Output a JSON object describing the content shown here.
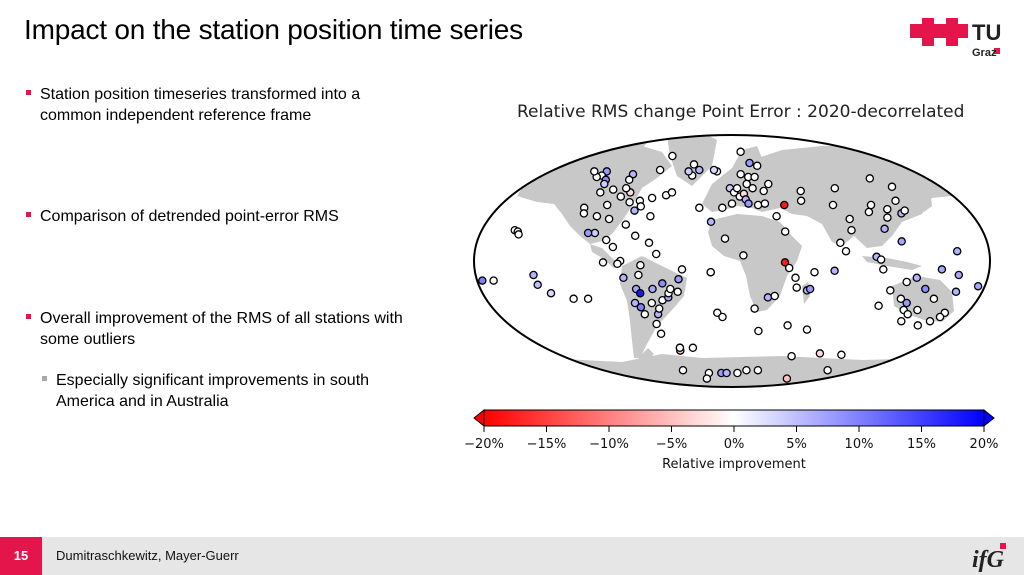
{
  "slide": {
    "title": "Impact on the station position time series",
    "page_number": "15",
    "authors": "Dumitraschkewitz, Mayer-Guerr"
  },
  "logos": {
    "tu": {
      "line1": "TU",
      "line2": "Graz",
      "accent": "#e4154b"
    },
    "ifg": {
      "text": "ifG",
      "accent": "#e4154b"
    }
  },
  "bullets": [
    {
      "text": "Station position timeseries transformed into a common independent reference frame"
    },
    {
      "text": "Comparison of detrended point-error RMS"
    },
    {
      "text": "Overall improvement of the RMS of all stations with some outliers"
    }
  ],
  "sub_bullets": [
    {
      "text": "Especially significant improvements in south America and in Australia"
    }
  ],
  "figure": {
    "title": "Relative RMS change Point Error : 2020-decorrelated",
    "colorbar": {
      "ticks": [
        "−20%",
        "−15%",
        "−10%",
        "−5%",
        "0%",
        "5%",
        "10%",
        "15%",
        "20%"
      ],
      "label": "Relative improvement",
      "range": [
        -20,
        20
      ],
      "colors": {
        "negative": "#ff0000",
        "zero": "#ffffff",
        "positive": "#0000ff"
      }
    },
    "map_colors": {
      "ocean": "#ffffff",
      "land": "#c8c8c8",
      "outline": "#000000"
    }
  },
  "chart_data": {
    "type": "scatter",
    "title": "Relative RMS change Point Error : 2020-decorrelated",
    "xlabel": "",
    "ylabel": "",
    "colorbar_label": "Relative improvement",
    "color_range": [
      -20,
      20
    ],
    "stations": [
      {
        "lon": -170,
        "lat": -14,
        "v": 0
      },
      {
        "lon": -160,
        "lat": 22,
        "v": 0
      },
      {
        "lon": -157,
        "lat": 21,
        "v": 0
      },
      {
        "lon": -150,
        "lat": 64,
        "v": 8
      },
      {
        "lon": -147,
        "lat": 61,
        "v": 0
      },
      {
        "lon": -140,
        "lat": -10,
        "v": 6
      },
      {
        "lon": -140,
        "lat": -17,
        "v": 5
      },
      {
        "lon": -134,
        "lat": -23,
        "v": 3
      },
      {
        "lon": -135,
        "lat": 58,
        "v": 9
      },
      {
        "lon": -130,
        "lat": 55,
        "v": 4
      },
      {
        "lon": -123,
        "lat": 49,
        "v": 0
      },
      {
        "lon": -122,
        "lat": 38,
        "v": 0
      },
      {
        "lon": -118,
        "lat": 34,
        "v": 0
      },
      {
        "lon": -114,
        "lat": 51,
        "v": 0
      },
      {
        "lon": -114,
        "lat": 62,
        "v": 6
      },
      {
        "lon": -110,
        "lat": 58,
        "v": 0
      },
      {
        "lon": -105,
        "lat": 40,
        "v": 0
      },
      {
        "lon": -106,
        "lat": 32,
        "v": 0
      },
      {
        "lon": -100,
        "lat": 20,
        "v": 4
      },
      {
        "lon": -95,
        "lat": 30,
        "v": 0
      },
      {
        "lon": -94,
        "lat": 75,
        "v": 0
      },
      {
        "lon": -95,
        "lat": 49,
        "v": -3
      },
      {
        "lon": -90,
        "lat": 15,
        "v": 0
      },
      {
        "lon": -88,
        "lat": 42,
        "v": 0
      },
      {
        "lon": -84,
        "lat": 10,
        "v": 0
      },
      {
        "lon": -80,
        "lat": 26,
        "v": 0
      },
      {
        "lon": -79,
        "lat": 36,
        "v": 6
      },
      {
        "lon": -80,
        "lat": 43,
        "v": 0
      },
      {
        "lon": -78,
        "lat": 0,
        "v": 0
      },
      {
        "lon": -77,
        "lat": -12,
        "v": 6
      },
      {
        "lon": -76,
        "lat": 39,
        "v": 0
      },
      {
        "lon": -75,
        "lat": -30,
        "v": 6
      },
      {
        "lon": -72,
        "lat": -33,
        "v": 10
      },
      {
        "lon": -71,
        "lat": 45,
        "v": 0
      },
      {
        "lon": -72,
        "lat": -38,
        "v": 0
      },
      {
        "lon": -70,
        "lat": 18,
        "v": 0
      },
      {
        "lon": -70,
        "lat": -20,
        "v": 7
      },
      {
        "lon": -68,
        "lat": -23,
        "v": 18
      },
      {
        "lon": -69,
        "lat": -52,
        "v": 0
      },
      {
        "lon": -67,
        "lat": -45,
        "v": 0
      },
      {
        "lon": -66,
        "lat": -10,
        "v": 0
      },
      {
        "lon": -64,
        "lat": -3,
        "v": 0
      },
      {
        "lon": -62,
        "lat": -30,
        "v": 0
      },
      {
        "lon": -61,
        "lat": -38,
        "v": 6
      },
      {
        "lon": -60,
        "lat": -62,
        "v": 0
      },
      {
        "lon": -58,
        "lat": -34,
        "v": 0
      },
      {
        "lon": -58,
        "lat": -20,
        "v": 7
      },
      {
        "lon": -53,
        "lat": -28,
        "v": 0
      },
      {
        "lon": -53,
        "lat": 5,
        "v": 0
      },
      {
        "lon": -50,
        "lat": -16,
        "v": 9
      },
      {
        "lon": -48,
        "lat": -26,
        "v": 7
      },
      {
        "lon": -47,
        "lat": -23,
        "v": 0
      },
      {
        "lon": -45,
        "lat": -20,
        "v": 0
      },
      {
        "lon": -40,
        "lat": -22,
        "v": 0
      },
      {
        "lon": -38,
        "lat": -13,
        "v": 8
      },
      {
        "lon": -35,
        "lat": -6,
        "v": 0
      },
      {
        "lon": -45,
        "lat": 61,
        "v": 0
      },
      {
        "lon": -52,
        "lat": 64,
        "v": 4
      },
      {
        "lon": -51,
        "lat": 69,
        "v": 0
      },
      {
        "lon": -40,
        "lat": 65,
        "v": 6
      },
      {
        "lon": -18,
        "lat": 64,
        "v": 0
      },
      {
        "lon": -22,
        "lat": 65,
        "v": 3
      },
      {
        "lon": -16,
        "lat": 28,
        "v": 6
      },
      {
        "lon": -15,
        "lat": -8,
        "v": 6
      },
      {
        "lon": -12,
        "lat": -37,
        "v": 0
      },
      {
        "lon": -8,
        "lat": 38,
        "v": 0
      },
      {
        "lon": -2,
        "lat": 52,
        "v": 4
      },
      {
        "lon": 0,
        "lat": 41,
        "v": 0
      },
      {
        "lon": 2,
        "lat": 49,
        "v": 0
      },
      {
        "lon": 5,
        "lat": 52,
        "v": 0
      },
      {
        "lon": 7,
        "lat": 46,
        "v": 0
      },
      {
        "lon": 10,
        "lat": 62,
        "v": 0
      },
      {
        "lon": 11,
        "lat": 48,
        "v": -3
      },
      {
        "lon": 12,
        "lat": 44,
        "v": 6
      },
      {
        "lon": 14,
        "lat": 41,
        "v": 8
      },
      {
        "lon": 15,
        "lat": 55,
        "v": 0
      },
      {
        "lon": 15,
        "lat": 78,
        "v": 0
      },
      {
        "lon": 18,
        "lat": 60,
        "v": 0
      },
      {
        "lon": 18,
        "lat": -34,
        "v": 0
      },
      {
        "lon": 20,
        "lat": 52,
        "v": 0
      },
      {
        "lon": 22,
        "lat": 40,
        "v": 0
      },
      {
        "lon": 25,
        "lat": 60,
        "v": 0
      },
      {
        "lon": 24,
        "lat": 70,
        "v": 8
      },
      {
        "lon": 27,
        "lat": -26,
        "v": 6
      },
      {
        "lon": 28,
        "lat": 41,
        "v": 0
      },
      {
        "lon": 30,
        "lat": 50,
        "v": 0
      },
      {
        "lon": 33,
        "lat": 68,
        "v": 0
      },
      {
        "lon": 32,
        "lat": -25,
        "v": 0
      },
      {
        "lon": 35,
        "lat": 32,
        "v": 0
      },
      {
        "lon": 37,
        "lat": 55,
        "v": 0
      },
      {
        "lon": 37,
        "lat": -1,
        "v": -18
      },
      {
        "lon": 39,
        "lat": 21,
        "v": 0
      },
      {
        "lon": 44,
        "lat": 40,
        "v": -18
      },
      {
        "lon": 45,
        "lat": -12,
        "v": 0
      },
      {
        "lon": 40,
        "lat": -5,
        "v": 0
      },
      {
        "lon": 47,
        "lat": -19,
        "v": 0
      },
      {
        "lon": 55,
        "lat": -21,
        "v": 6
      },
      {
        "lon": 57,
        "lat": -20,
        "v": 8
      },
      {
        "lon": 50,
        "lat": -46,
        "v": 0
      },
      {
        "lon": 58,
        "lat": -8,
        "v": 0
      },
      {
        "lon": 60,
        "lat": 43,
        "v": 0
      },
      {
        "lon": 65,
        "lat": 50,
        "v": 0
      },
      {
        "lon": 70,
        "lat": -49,
        "v": 0
      },
      {
        "lon": 72,
        "lat": -7,
        "v": 6
      },
      {
        "lon": 77,
        "lat": 13,
        "v": 0
      },
      {
        "lon": 78,
        "lat": -68,
        "v": 0
      },
      {
        "lon": 80,
        "lat": 7,
        "v": 0
      },
      {
        "lon": 85,
        "lat": 40,
        "v": 0
      },
      {
        "lon": 88,
        "lat": 22,
        "v": 0
      },
      {
        "lon": 91,
        "lat": 30,
        "v": 0
      },
      {
        "lon": 100,
        "lat": 52,
        "v": 0
      },
      {
        "lon": 101,
        "lat": 3,
        "v": 6
      },
      {
        "lon": 104,
        "lat": 1,
        "v": 0
      },
      {
        "lon": 106,
        "lat": -6,
        "v": 0
      },
      {
        "lon": 110,
        "lat": -66,
        "v": -3
      },
      {
        "lon": 110,
        "lat": 35,
        "v": 0
      },
      {
        "lon": 113,
        "lat": 23,
        "v": 6
      },
      {
        "lon": 115,
        "lat": -32,
        "v": 0
      },
      {
        "lon": 116,
        "lat": -21,
        "v": 0
      },
      {
        "lon": 117,
        "lat": 40,
        "v": 0
      },
      {
        "lon": 121,
        "lat": 14,
        "v": 7
      },
      {
        "lon": 121,
        "lat": 31,
        "v": 0
      },
      {
        "lon": 125,
        "lat": -15,
        "v": 0
      },
      {
        "lon": 127,
        "lat": 37,
        "v": 0
      },
      {
        "lon": 128,
        "lat": -27,
        "v": 0
      },
      {
        "lon": 131,
        "lat": -12,
        "v": 6
      },
      {
        "lon": 135,
        "lat": -30,
        "v": 8
      },
      {
        "lon": 135,
        "lat": 34,
        "v": 6
      },
      {
        "lon": 138,
        "lat": -35,
        "v": 0
      },
      {
        "lon": 140,
        "lat": 36,
        "v": 0
      },
      {
        "lon": 140,
        "lat": -67,
        "v": 0
      },
      {
        "lon": 141,
        "lat": -20,
        "v": 9
      },
      {
        "lon": 142,
        "lat": 43,
        "v": 0
      },
      {
        "lon": 145,
        "lat": -38,
        "v": 0
      },
      {
        "lon": 147,
        "lat": -43,
        "v": 0
      },
      {
        "lon": 147,
        "lat": -6,
        "v": 7
      },
      {
        "lon": 149,
        "lat": -35,
        "v": 0
      },
      {
        "lon": 150,
        "lat": 59,
        "v": 0
      },
      {
        "lon": 153,
        "lat": -27,
        "v": 0
      },
      {
        "lon": 158,
        "lat": 53,
        "v": 0
      },
      {
        "lon": 158,
        "lat": 7,
        "v": 6
      },
      {
        "lon": 160,
        "lat": -10,
        "v": 7
      },
      {
        "lon": 165,
        "lat": -22,
        "v": 6
      },
      {
        "lon": 166,
        "lat": -78,
        "v": 0
      },
      {
        "lon": 167,
        "lat": -46,
        "v": 0
      },
      {
        "lon": 172,
        "lat": -43,
        "v": 0
      },
      {
        "lon": 174,
        "lat": -37,
        "v": 0
      },
      {
        "lon": 178,
        "lat": -18,
        "v": 7
      },
      {
        "lon": 175,
        "lat": -40,
        "v": 0
      },
      {
        "lon": -178,
        "lat": -14,
        "v": 10
      },
      {
        "lon": -120,
        "lat": -27,
        "v": 0
      },
      {
        "lon": -109,
        "lat": -27,
        "v": 0
      },
      {
        "lon": -90,
        "lat": -1,
        "v": 0
      },
      {
        "lon": -64,
        "lat": 32,
        "v": 0
      },
      {
        "lon": -43,
        "lat": -80,
        "v": 0
      },
      {
        "lon": -55,
        "lat": -84,
        "v": 0
      },
      {
        "lon": -20,
        "lat": -80,
        "v": 8
      },
      {
        "lon": -10,
        "lat": -80,
        "v": 6
      },
      {
        "lon": 10,
        "lat": -80,
        "v": 0
      },
      {
        "lon": -85,
        "lat": -78,
        "v": 0
      },
      {
        "lon": 25,
        "lat": -78,
        "v": 0
      },
      {
        "lon": 45,
        "lat": -78,
        "v": 0
      },
      {
        "lon": 120,
        "lat": -84,
        "v": -5
      },
      {
        "lon": -62,
        "lat": -64,
        "v": -5
      },
      {
        "lon": -5,
        "lat": 16,
        "v": 0
      },
      {
        "lon": -59,
        "lat": 13,
        "v": 0
      },
      {
        "lon": -27,
        "lat": 38,
        "v": 0
      },
      {
        "lon": 8,
        "lat": 4,
        "v": 0
      },
      {
        "lon": -105,
        "lat": 20,
        "v": 8
      },
      {
        "lon": -155,
        "lat": 19,
        "v": 0
      },
      {
        "lon": -60,
        "lat": -62,
        "v": 0
      },
      {
        "lon": -45,
        "lat": -62,
        "v": 0
      },
      {
        "lon": -80,
        "lat": -2,
        "v": 0
      },
      {
        "lon": -88,
        "lat": 65,
        "v": 0
      },
      {
        "lon": -60,
        "lat": 47,
        "v": 0
      },
      {
        "lon": -56,
        "lat": 49,
        "v": 0
      },
      {
        "lon": -103,
        "lat": 52,
        "v": 0
      },
      {
        "lon": -100,
        "lat": 46,
        "v": 0
      },
      {
        "lon": -150,
        "lat": 60,
        "v": 0
      },
      {
        "lon": -165,
        "lat": 64,
        "v": 0
      },
      {
        "lon": -15,
        "lat": -8,
        "v": 0
      },
      {
        "lon": 25,
        "lat": -50,
        "v": 0
      },
      {
        "lon": -8,
        "lat": -40,
        "v": 0
      }
    ]
  }
}
